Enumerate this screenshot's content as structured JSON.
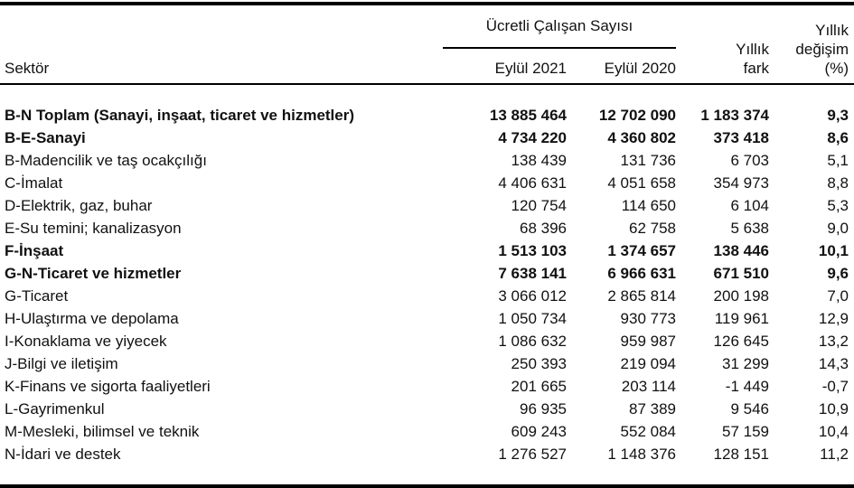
{
  "colors": {
    "background": "#ffffff",
    "text": "#111111",
    "rule": "#000000"
  },
  "table": {
    "header": {
      "sector": "Sektör",
      "group": "Ücretli Çalışan Sayısı",
      "month_2021": "Eylül 2021",
      "month_2020": "Eylül 2020",
      "fark_line1": "Yıllık",
      "fark_line2": "fark",
      "pct_line1": "Yıllık",
      "pct_line2": "değişim",
      "pct_line3": "(%)"
    },
    "rows": [
      {
        "sector": "B-N Toplam (Sanayi, inşaat, ticaret ve hizmetler)",
        "eylul_2021": "13 885 464",
        "eylul_2020": "12 702 090",
        "yillik_fark": "1 183 374",
        "yillik_degisim": "9,3",
        "bold": true
      },
      {
        "sector": "B-E-Sanayi",
        "eylul_2021": "4 734 220",
        "eylul_2020": "4 360 802",
        "yillik_fark": "373 418",
        "yillik_degisim": "8,6",
        "bold": true
      },
      {
        "sector": "B-Madencilik ve taş ocakçılığı",
        "eylul_2021": "138 439",
        "eylul_2020": "131 736",
        "yillik_fark": "6 703",
        "yillik_degisim": "5,1",
        "bold": false
      },
      {
        "sector": "C-İmalat",
        "eylul_2021": "4 406 631",
        "eylul_2020": "4 051 658",
        "yillik_fark": "354 973",
        "yillik_degisim": "8,8",
        "bold": false
      },
      {
        "sector": "D-Elektrik, gaz, buhar",
        "eylul_2021": "120 754",
        "eylul_2020": "114 650",
        "yillik_fark": "6 104",
        "yillik_degisim": "5,3",
        "bold": false
      },
      {
        "sector": "E-Su temini; kanalizasyon",
        "eylul_2021": "68 396",
        "eylul_2020": "62 758",
        "yillik_fark": "5 638",
        "yillik_degisim": "9,0",
        "bold": false
      },
      {
        "sector": "F-İnşaat",
        "eylul_2021": "1 513 103",
        "eylul_2020": "1 374 657",
        "yillik_fark": "138 446",
        "yillik_degisim": "10,1",
        "bold": true
      },
      {
        "sector": "G-N-Ticaret ve hizmetler",
        "eylul_2021": "7 638 141",
        "eylul_2020": "6 966 631",
        "yillik_fark": "671 510",
        "yillik_degisim": "9,6",
        "bold": true
      },
      {
        "sector": "G-Ticaret",
        "eylul_2021": "3 066 012",
        "eylul_2020": "2 865 814",
        "yillik_fark": "200 198",
        "yillik_degisim": "7,0",
        "bold": false
      },
      {
        "sector": "H-Ulaştırma ve depolama",
        "eylul_2021": "1 050 734",
        "eylul_2020": "930 773",
        "yillik_fark": "119 961",
        "yillik_degisim": "12,9",
        "bold": false
      },
      {
        "sector": "I-Konaklama ve yiyecek",
        "eylul_2021": "1 086 632",
        "eylul_2020": "959 987",
        "yillik_fark": "126 645",
        "yillik_degisim": "13,2",
        "bold": false
      },
      {
        "sector": "J-Bilgi ve iletişim",
        "eylul_2021": "250 393",
        "eylul_2020": "219 094",
        "yillik_fark": "31 299",
        "yillik_degisim": "14,3",
        "bold": false
      },
      {
        "sector": "K-Finans ve sigorta faaliyetleri",
        "eylul_2021": "201 665",
        "eylul_2020": "203 114",
        "yillik_fark": "-1 449",
        "yillik_degisim": "-0,7",
        "bold": false
      },
      {
        "sector": "L-Gayrimenkul",
        "eylul_2021": "96 935",
        "eylul_2020": "87 389",
        "yillik_fark": "9 546",
        "yillik_degisim": "10,9",
        "bold": false
      },
      {
        "sector": "M-Mesleki, bilimsel ve teknik",
        "eylul_2021": "609 243",
        "eylul_2020": "552 084",
        "yillik_fark": "57 159",
        "yillik_degisim": "10,4",
        "bold": false
      },
      {
        "sector": "N-İdari ve destek",
        "eylul_2021": "1 276 527",
        "eylul_2020": "1 148 376",
        "yillik_fark": "128 151",
        "yillik_degisim": "11,2",
        "bold": false
      }
    ]
  }
}
